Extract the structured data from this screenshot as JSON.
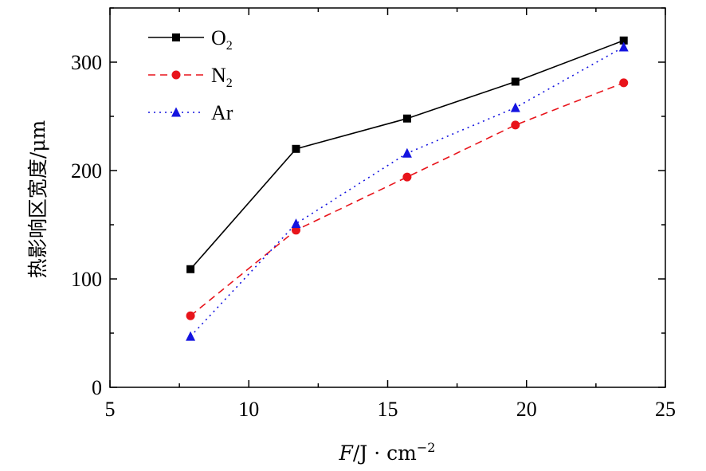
{
  "chart_data": {
    "type": "line",
    "xlabel_italic": "F",
    "xlabel_rest": "/J · cm",
    "xlabel_sup": "−2",
    "ylabel": "热影响区宽度/μm",
    "xlim": [
      5,
      25
    ],
    "ylim": [
      0,
      350
    ],
    "x_ticks": [
      5,
      10,
      15,
      20,
      25
    ],
    "y_ticks": [
      0,
      100,
      200,
      300
    ],
    "x": [
      7.9,
      11.7,
      15.7,
      19.6,
      23.5
    ],
    "series": [
      {
        "name": "O2",
        "name_main": "O",
        "name_sub": "2",
        "color": "#000000",
        "dash": "",
        "marker": "square",
        "values": [
          109,
          220,
          248,
          282,
          320
        ]
      },
      {
        "name": "N2",
        "name_main": "N",
        "name_sub": "2",
        "color": "#e8141b",
        "dash": "9,6",
        "marker": "circle",
        "values": [
          66,
          145,
          194,
          242,
          281
        ]
      },
      {
        "name": "Ar",
        "name_main": "Ar",
        "name_sub": "",
        "color": "#1414e0",
        "dash": "2,5",
        "marker": "triangle",
        "values": [
          47,
          151,
          216,
          258,
          314
        ]
      }
    ],
    "legend_position": "top-left",
    "grid": false
  }
}
